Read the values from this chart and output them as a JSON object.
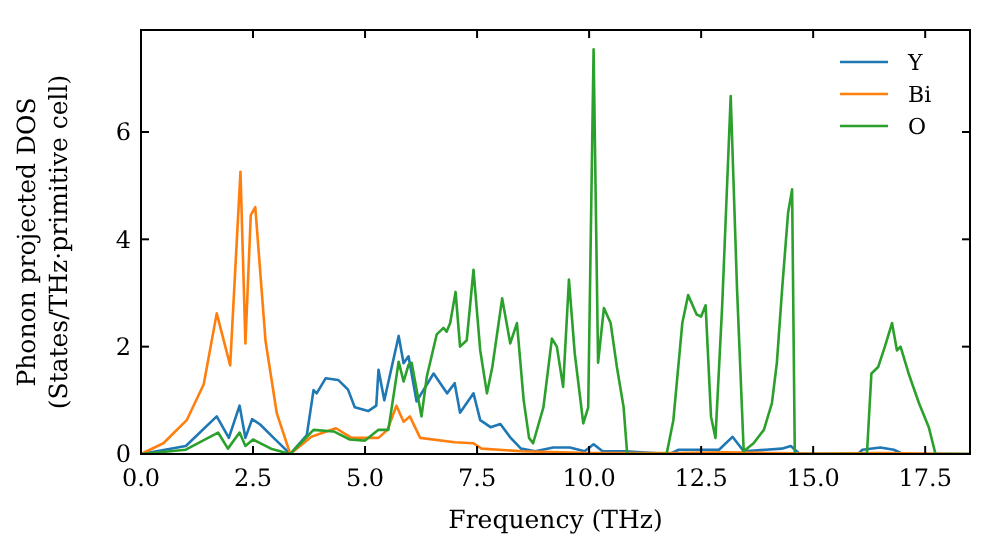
{
  "chart_data": {
    "type": "line",
    "xlabel": "Frequency (THz)",
    "ylabel": "Phonon projected DOS\n(States/THz·primitive cell)",
    "xlim": [
      0,
      18.5
    ],
    "ylim": [
      0,
      7.9
    ],
    "xticks": [
      {
        "value": 0,
        "label": "0.0"
      },
      {
        "value": 2.5,
        "label": "2.5"
      },
      {
        "value": 5,
        "label": "5.0"
      },
      {
        "value": 7.5,
        "label": "7.5"
      },
      {
        "value": 10,
        "label": "10.0"
      },
      {
        "value": 12.5,
        "label": "12.5"
      },
      {
        "value": 15,
        "label": "15.0"
      },
      {
        "value": 17.5,
        "label": "17.5"
      }
    ],
    "yticks": [
      0,
      2,
      4,
      6
    ],
    "grid": false,
    "legend": "top right",
    "marker": "none",
    "line_style": "solid",
    "series": [
      {
        "name": "Y",
        "color": "#1f77b4",
        "x": [
          0,
          1.0,
          1.69,
          1.96,
          2.2,
          2.33,
          2.48,
          2.66,
          2.96,
          3.33,
          3.7,
          3.85,
          3.92,
          4.12,
          4.4,
          4.62,
          4.77,
          5.07,
          5.25,
          5.3,
          5.43,
          5.75,
          5.86,
          5.97,
          6.15,
          6.53,
          6.83,
          7.0,
          7.12,
          7.42,
          7.57,
          7.8,
          8.02,
          8.25,
          8.48,
          8.8,
          9.2,
          9.57,
          9.9,
          10.1,
          10.3,
          10.8,
          11.8,
          12.0,
          12.9,
          13.2,
          13.45,
          14.3,
          14.5,
          14.7,
          16.0,
          16.1,
          16.5,
          16.8,
          17.0,
          18.5
        ],
        "values": [
          0,
          0.15,
          0.7,
          0.3,
          0.9,
          0.3,
          0.65,
          0.55,
          0.3,
          0,
          0.35,
          1.19,
          1.13,
          1.41,
          1.38,
          1.2,
          0.87,
          0.8,
          0.9,
          1.57,
          1.0,
          2.2,
          1.69,
          1.82,
          0.98,
          1.5,
          1.13,
          1.32,
          0.77,
          1.13,
          0.63,
          0.5,
          0.56,
          0.3,
          0.1,
          0.05,
          0.12,
          0.12,
          0.05,
          0.18,
          0.05,
          0.05,
          0,
          0.08,
          0.08,
          0.32,
          0.05,
          0.1,
          0.15,
          0,
          0,
          0.08,
          0.12,
          0.08,
          0,
          0
        ]
      },
      {
        "name": "Bi",
        "color": "#ff7f0e",
        "x": [
          0,
          0.5,
          1.02,
          1.4,
          1.69,
          1.99,
          2.22,
          2.33,
          2.45,
          2.55,
          2.78,
          3.03,
          3.33,
          3.8,
          4.35,
          4.7,
          5.3,
          5.5,
          5.7,
          5.86,
          6.0,
          6.23,
          7.0,
          7.42,
          7.6,
          8.5,
          10,
          12,
          13,
          14,
          15,
          16.5,
          18.5
        ],
        "values": [
          0,
          0.2,
          0.63,
          1.3,
          2.62,
          1.65,
          5.26,
          2.06,
          4.45,
          4.6,
          2.1,
          0.76,
          0,
          0.32,
          0.48,
          0.3,
          0.3,
          0.45,
          0.9,
          0.6,
          0.7,
          0.3,
          0.22,
          0.2,
          0.1,
          0.05,
          0.02,
          0.02,
          0.03,
          0.02,
          0.01,
          0.02,
          0
        ]
      },
      {
        "name": "O",
        "color": "#2ca02c",
        "x": [
          0,
          1.0,
          1.72,
          1.94,
          2.2,
          2.33,
          2.5,
          2.9,
          3.33,
          3.85,
          4.3,
          4.66,
          5.0,
          5.3,
          5.52,
          5.75,
          5.86,
          5.97,
          6.04,
          6.26,
          6.38,
          6.6,
          6.75,
          6.82,
          6.9,
          7.02,
          7.12,
          7.27,
          7.42,
          7.57,
          7.72,
          7.84,
          8.06,
          8.24,
          8.39,
          8.54,
          8.66,
          8.75,
          8.98,
          9.17,
          9.28,
          9.42,
          9.55,
          9.68,
          9.87,
          9.98,
          10.1,
          10.2,
          10.33,
          10.48,
          10.62,
          10.77,
          10.85,
          11.73,
          11.88,
          12.08,
          12.21,
          12.4,
          12.5,
          12.6,
          12.72,
          12.82,
          12.97,
          13.16,
          13.3,
          13.45,
          13.67,
          13.9,
          14.08,
          14.19,
          14.31,
          14.44,
          14.53,
          14.59,
          16.2,
          16.3,
          16.45,
          16.6,
          16.76,
          16.87,
          16.95,
          17.13,
          17.36,
          17.58,
          17.73,
          18.5
        ],
        "values": [
          0,
          0.08,
          0.4,
          0.1,
          0.4,
          0.15,
          0.27,
          0.1,
          0,
          0.45,
          0.42,
          0.27,
          0.25,
          0.45,
          0.45,
          1.72,
          1.35,
          1.66,
          1.7,
          0.7,
          1.45,
          2.23,
          2.35,
          2.28,
          2.44,
          3.02,
          2.0,
          2.12,
          3.43,
          1.93,
          1.13,
          1.62,
          2.9,
          2.06,
          2.44,
          1.0,
          0.3,
          0.2,
          0.87,
          2.15,
          2.0,
          1.25,
          3.25,
          1.87,
          0.57,
          0.87,
          7.54,
          1.7,
          2.72,
          2.44,
          1.62,
          0.87,
          0,
          0,
          0.63,
          2.44,
          2.96,
          2.6,
          2.56,
          2.77,
          0.7,
          0.3,
          2.77,
          6.67,
          3.1,
          0.05,
          0.2,
          0.45,
          0.95,
          1.7,
          3.1,
          4.49,
          4.93,
          0,
          0,
          1.5,
          1.62,
          2.0,
          2.44,
          1.93,
          2.0,
          1.5,
          0.95,
          0.5,
          0,
          0
        ]
      }
    ]
  }
}
